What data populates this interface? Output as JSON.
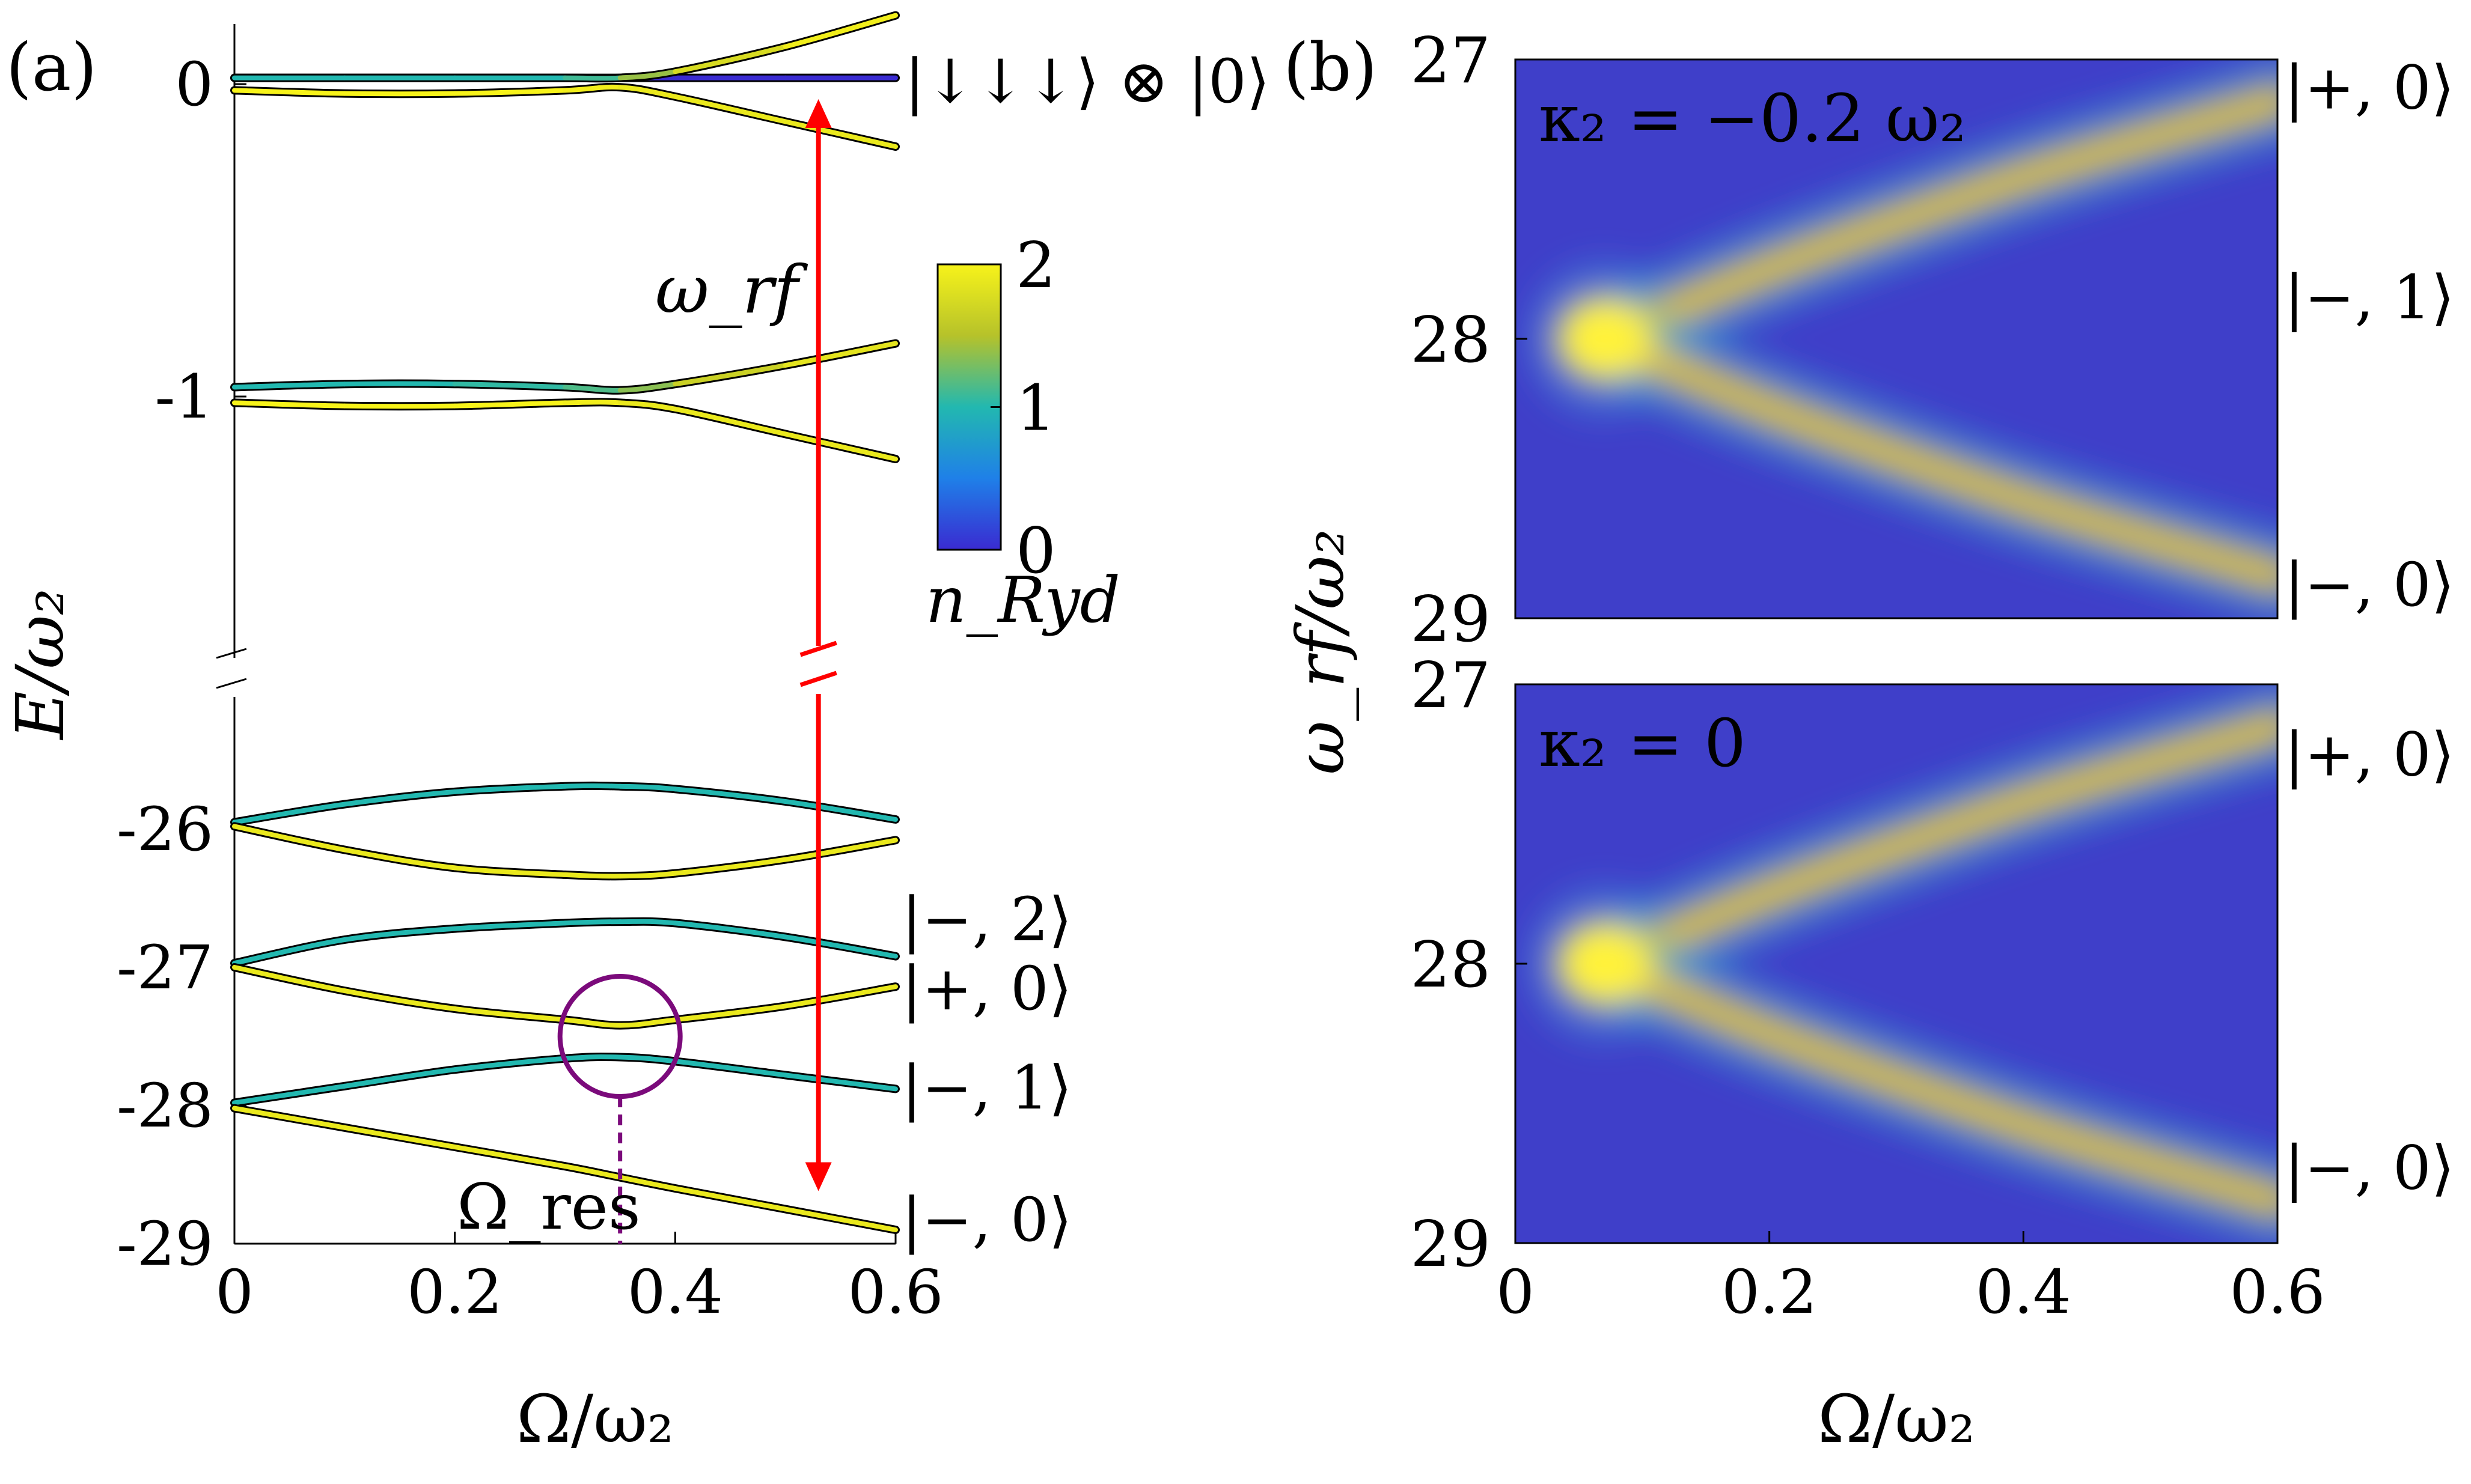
{
  "colors": {
    "colorbar_low": "#3a2bd1",
    "colorbar_high": "#f7f31a",
    "rf_arrow": "#ff0000",
    "resonance_marker": "#7b0a7b",
    "vacuum_state_label": "#3a2bd1",
    "map_background": "#3f3fc9",
    "map_ridge": "#dcc12e",
    "map_inset_text": "#ffffff"
  },
  "chart_data": [
    {
      "type": "line",
      "panel_label": "(a)",
      "xlabel": "Ω/ω₂",
      "ylabel": "E/ω₂",
      "xlim": [
        0,
        0.6
      ],
      "axis_break": true,
      "ylim_upper": [
        -1.8,
        0.2
      ],
      "ylim_lower": [
        -29,
        -25.4
      ],
      "xticks": [
        "0",
        "0.2",
        "0.4",
        "0.6"
      ],
      "yticks_upper": [
        "0",
        "-1"
      ],
      "yticks_lower": [
        "-26",
        "-27",
        "-28",
        "-29"
      ],
      "colorbar": {
        "label": "n_Ryd",
        "ticks": [
          "0",
          "1",
          "2"
        ],
        "range": [
          0,
          2
        ]
      },
      "color_scale": "n_Ryd",
      "series": [
        {
          "x": [
            0,
            0.1,
            0.2,
            0.3,
            0.35,
            0.4,
            0.5,
            0.6
          ],
          "y": [
            0.02,
            0.02,
            0.02,
            0.02,
            0.02,
            0.02,
            0.02,
            0.02
          ],
          "n": [
            0.2,
            0.2,
            0.15,
            0.05,
            0.0,
            0.0,
            0.0,
            0.0
          ]
        },
        {
          "x": [
            0,
            0.1,
            0.2,
            0.3,
            0.35,
            0.4,
            0.5,
            0.6
          ],
          "y": [
            0.02,
            0.02,
            0.02,
            0.02,
            0.02,
            0.04,
            0.12,
            0.22
          ],
          "n": [
            1.0,
            1.0,
            1.0,
            1.0,
            1.2,
            1.6,
            1.9,
            2.0
          ]
        },
        {
          "x": [
            0,
            0.1,
            0.2,
            0.3,
            0.35,
            0.4,
            0.5,
            0.6
          ],
          "y": [
            -0.02,
            -0.03,
            -0.03,
            -0.02,
            -0.01,
            -0.04,
            -0.12,
            -0.2
          ],
          "n": [
            2.0,
            2.0,
            2.0,
            2.0,
            1.9,
            1.9,
            1.9,
            1.9
          ]
        },
        {
          "x": [
            0,
            0.1,
            0.2,
            0.3,
            0.35,
            0.4,
            0.5,
            0.6
          ],
          "y": [
            -0.97,
            -0.96,
            -0.96,
            -0.97,
            -0.98,
            -0.96,
            -0.9,
            -0.83
          ],
          "n": [
            1.0,
            1.0,
            1.0,
            1.1,
            1.2,
            1.5,
            1.8,
            1.9
          ]
        },
        {
          "x": [
            0,
            0.1,
            0.2,
            0.3,
            0.35,
            0.4,
            0.5,
            0.6
          ],
          "y": [
            -1.02,
            -1.03,
            -1.03,
            -1.02,
            -1.02,
            -1.04,
            -1.12,
            -1.2
          ],
          "n": [
            2.0,
            2.0,
            2.0,
            2.0,
            1.9,
            1.9,
            1.9,
            1.9
          ]
        },
        {
          "x": [
            0,
            0.1,
            0.2,
            0.3,
            0.35,
            0.4,
            0.5,
            0.6
          ],
          "y": [
            -25.95,
            -25.82,
            -25.73,
            -25.69,
            -25.69,
            -25.71,
            -25.8,
            -25.93
          ],
          "n": [
            1.0,
            1.0,
            1.0,
            1.0,
            1.0,
            1.0,
            1.0,
            1.0
          ]
        },
        {
          "x": [
            0,
            0.1,
            0.2,
            0.3,
            0.35,
            0.4,
            0.5,
            0.6
          ],
          "y": [
            -25.98,
            -26.15,
            -26.28,
            -26.33,
            -26.34,
            -26.32,
            -26.22,
            -26.08
          ],
          "n": [
            1.9,
            1.9,
            1.9,
            1.9,
            1.9,
            1.9,
            1.9,
            1.9
          ]
        },
        {
          "x": [
            0,
            0.1,
            0.2,
            0.3,
            0.35,
            0.4,
            0.5,
            0.6
          ],
          "y": [
            -26.97,
            -26.8,
            -26.72,
            -26.68,
            -26.67,
            -26.68,
            -26.78,
            -26.92
          ],
          "n": [
            1.0,
            1.0,
            1.0,
            1.0,
            1.0,
            1.0,
            1.0,
            1.0
          ]
        },
        {
          "x": [
            0,
            0.1,
            0.2,
            0.3,
            0.35,
            0.4,
            0.5,
            0.6
          ],
          "y": [
            -27.0,
            -27.17,
            -27.3,
            -27.38,
            -27.42,
            -27.38,
            -27.28,
            -27.14
          ],
          "n": [
            1.9,
            1.9,
            1.9,
            1.9,
            1.9,
            1.9,
            1.9,
            1.9
          ]
        },
        {
          "x": [
            0,
            0.1,
            0.2,
            0.3,
            0.35,
            0.4,
            0.5,
            0.6
          ],
          "y": [
            -27.98,
            -27.86,
            -27.74,
            -27.66,
            -27.65,
            -27.68,
            -27.78,
            -27.88
          ],
          "n": [
            1.0,
            1.0,
            1.0,
            1.0,
            1.0,
            1.0,
            1.0,
            1.0
          ]
        },
        {
          "x": [
            0,
            0.1,
            0.2,
            0.3,
            0.35,
            0.4,
            0.5,
            0.6
          ],
          "y": [
            -28.02,
            -28.16,
            -28.3,
            -28.44,
            -28.52,
            -28.6,
            -28.75,
            -28.9
          ],
          "n": [
            1.9,
            1.9,
            1.9,
            1.9,
            1.9,
            1.9,
            1.9,
            1.9
          ]
        }
      ],
      "annotations": {
        "vacuum_state": "|↓↓↓⟩ ⊗ |0⟩",
        "rf_label": "ω_rf",
        "resonance_label": "Ω_res",
        "resonance_x": 0.35,
        "resonance_y": -27.5,
        "rf_arrow_x": 0.53,
        "rf_arrow_top": 0.0,
        "rf_arrow_bottom": -28.75,
        "state_labels": [
          {
            "text": "|−, 2⟩",
            "y": -26.92
          },
          {
            "text": "|+, 0⟩",
            "y": -27.14
          },
          {
            "text": "|−, 1⟩",
            "y": -27.88
          },
          {
            "text": "|−, 0⟩",
            "y": -28.9
          }
        ]
      }
    },
    {
      "type": "heatmap",
      "panel_label": "(b)",
      "xlabel": "Ω/ω₂",
      "ylabel": "ω_rf/ω₂",
      "xlim": [
        0,
        0.6
      ],
      "xticks": [
        "0",
        "0.2",
        "0.4",
        "0.6"
      ],
      "subplots": [
        {
          "inset_label": "κ₂ = −0.2 ω₂",
          "ylim": [
            27,
            29
          ],
          "yticks": [
            "27",
            "28",
            "29"
          ],
          "ridges": [
            {
              "x": [
                0.07,
                0.2,
                0.35,
                0.45,
                0.6
              ],
              "y": [
                28.0,
                27.75,
                27.5,
                27.35,
                27.15
              ]
            },
            {
              "x": [
                0.07,
                0.2,
                0.35,
                0.45,
                0.6
              ],
              "y": [
                28.0,
                28.25,
                28.5,
                28.65,
                28.85
              ]
            }
          ],
          "state_labels": [
            {
              "text": "|+, 0⟩",
              "y": 27.1
            },
            {
              "text": "|−, 1⟩",
              "y": 27.85
            },
            {
              "text": "|−, 0⟩",
              "y": 28.88
            }
          ]
        },
        {
          "inset_label": "κ₂ = 0",
          "ylim": [
            27,
            29
          ],
          "yticks": [
            "27",
            "28",
            "29"
          ],
          "ridges": [
            {
              "x": [
                0.07,
                0.2,
                0.35,
                0.45,
                0.6
              ],
              "y": [
                28.0,
                27.75,
                27.5,
                27.35,
                27.15
              ]
            },
            {
              "x": [
                0.07,
                0.2,
                0.35,
                0.45,
                0.6
              ],
              "y": [
                28.0,
                28.25,
                28.5,
                28.65,
                28.85
              ]
            }
          ],
          "state_labels": [
            {
              "text": "|+, 0⟩",
              "y": 27.25
            },
            {
              "text": "|−, 0⟩",
              "y": 28.73
            }
          ]
        }
      ]
    }
  ]
}
